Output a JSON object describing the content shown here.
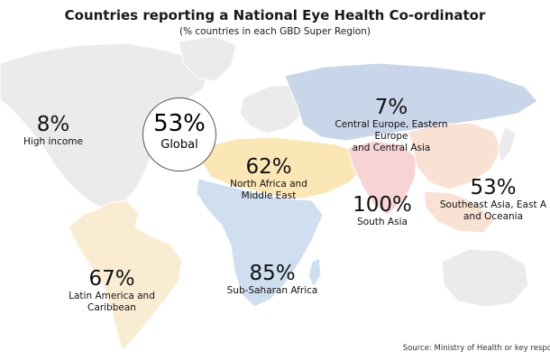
{
  "title": "Countries reporting a National Eye Health Co-ordinator",
  "subtitle": "(% countries in each GBD Super Region)",
  "colors": {
    "high_income": "#ebebeb",
    "central_europe_asia": "#c9d5e9",
    "north_africa_middle_east": "#fbe6b6",
    "south_asia": "#f8d3d6",
    "southeast_asia_oceania": "#f9e2d3",
    "sub_saharan_africa": "#cfdff0",
    "latin_america": "#f9ecd3"
  },
  "global": {
    "value": "53%",
    "label": "Global"
  },
  "regions": [
    {
      "id": "high-income",
      "value": "8%",
      "label": "High income"
    },
    {
      "id": "central-europe",
      "value": "7%",
      "label_line1": "Central Europe, Eastern Europe",
      "label_line2": "and Central Asia"
    },
    {
      "id": "north-africa",
      "value": "62%",
      "label_line1": "North Africa and",
      "label_line2": "Middle East"
    },
    {
      "id": "south-asia",
      "value": "100%",
      "label": "South Asia"
    },
    {
      "id": "southeast-asia",
      "value": "53%",
      "label_line1": "Southeast Asia, East A",
      "label_line2": "and Oceania"
    },
    {
      "id": "sub-saharan",
      "value": "85%",
      "label": "Sub-Saharan Africa"
    },
    {
      "id": "latin-america",
      "value": "67%",
      "label_line1": "Latin America and",
      "label_line2": "Caribbean"
    }
  ],
  "source": "Source: Ministry of Health or key respo"
}
